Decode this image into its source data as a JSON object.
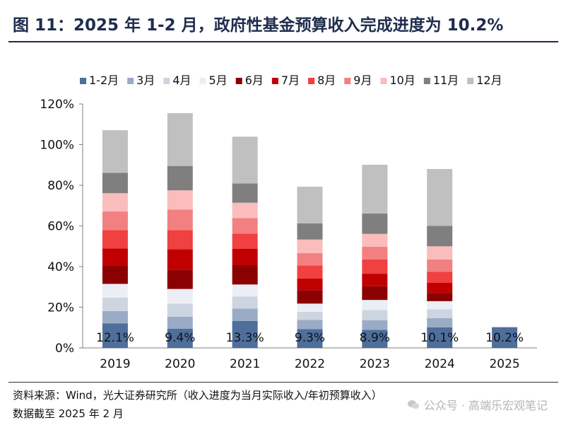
{
  "title": "图 11：2025 年 1-2 月，政府性基金预算收入完成进度为 10.2%",
  "source": "资料来源：Wind，光大证券研究所（收入进度为当月实际收入/年初预算收入）",
  "as_of": "数据截至 2025 年 2 月",
  "watermark": "公众号 · 高端乐宏观笔记",
  "chart_data": {
    "type": "bar",
    "stacked": true,
    "categories": [
      "2019",
      "2020",
      "2021",
      "2022",
      "2023",
      "2024",
      "2025"
    ],
    "ylim": [
      0,
      120
    ],
    "yticks": [
      0,
      20,
      40,
      60,
      80,
      100,
      120
    ],
    "ytick_labels": [
      "0%",
      "20%",
      "40%",
      "60%",
      "80%",
      "100%",
      "120%"
    ],
    "xlabel": "",
    "ylabel": "",
    "grid": false,
    "legend_position": "top",
    "series": [
      {
        "name": "1-2月",
        "color": "#4e6e9c",
        "values": [
          12.1,
          9.4,
          13.3,
          9.3,
          8.9,
          10.1,
          10.2
        ]
      },
      {
        "name": "3月",
        "color": "#9aabc6",
        "values": [
          6.0,
          6.0,
          6.0,
          4.5,
          4.7,
          4.5,
          null
        ]
      },
      {
        "name": "4月",
        "color": "#cdd5e1",
        "values": [
          6.6,
          6.4,
          6.0,
          4.0,
          5.0,
          4.4,
          null
        ]
      },
      {
        "name": "5月",
        "color": "#ebeef4",
        "values": [
          6.8,
          7.2,
          5.9,
          4.0,
          5.0,
          4.0,
          null
        ]
      },
      {
        "name": "6月",
        "color": "#8b0000",
        "values": [
          9.0,
          9.5,
          9.5,
          6.5,
          6.7,
          4.0,
          null
        ]
      },
      {
        "name": "7月",
        "color": "#c00000",
        "values": [
          8.4,
          10.0,
          8.0,
          5.8,
          6.2,
          5.0,
          null
        ]
      },
      {
        "name": "8月",
        "color": "#f04040",
        "values": [
          9.0,
          9.5,
          7.5,
          6.5,
          7.0,
          5.5,
          null
        ]
      },
      {
        "name": "9月",
        "color": "#f28080",
        "values": [
          9.2,
          10.0,
          7.7,
          6.0,
          6.3,
          6.0,
          null
        ]
      },
      {
        "name": "10月",
        "color": "#fbbcbc",
        "values": [
          9.0,
          9.5,
          7.5,
          6.7,
          6.3,
          6.5,
          null
        ]
      },
      {
        "name": "11月",
        "color": "#7f7f7f",
        "values": [
          10.0,
          12.0,
          9.5,
          8.0,
          10.0,
          10.0,
          null
        ]
      },
      {
        "name": "12月",
        "color": "#c0c0c0",
        "values": [
          21.0,
          26.0,
          23.0,
          18.0,
          24.0,
          28.0,
          null
        ]
      }
    ],
    "data_labels": [
      "12.1%",
      "9.4%",
      "13.3%",
      "9.3%",
      "8.9%",
      "10.1%",
      "10.2%"
    ]
  }
}
